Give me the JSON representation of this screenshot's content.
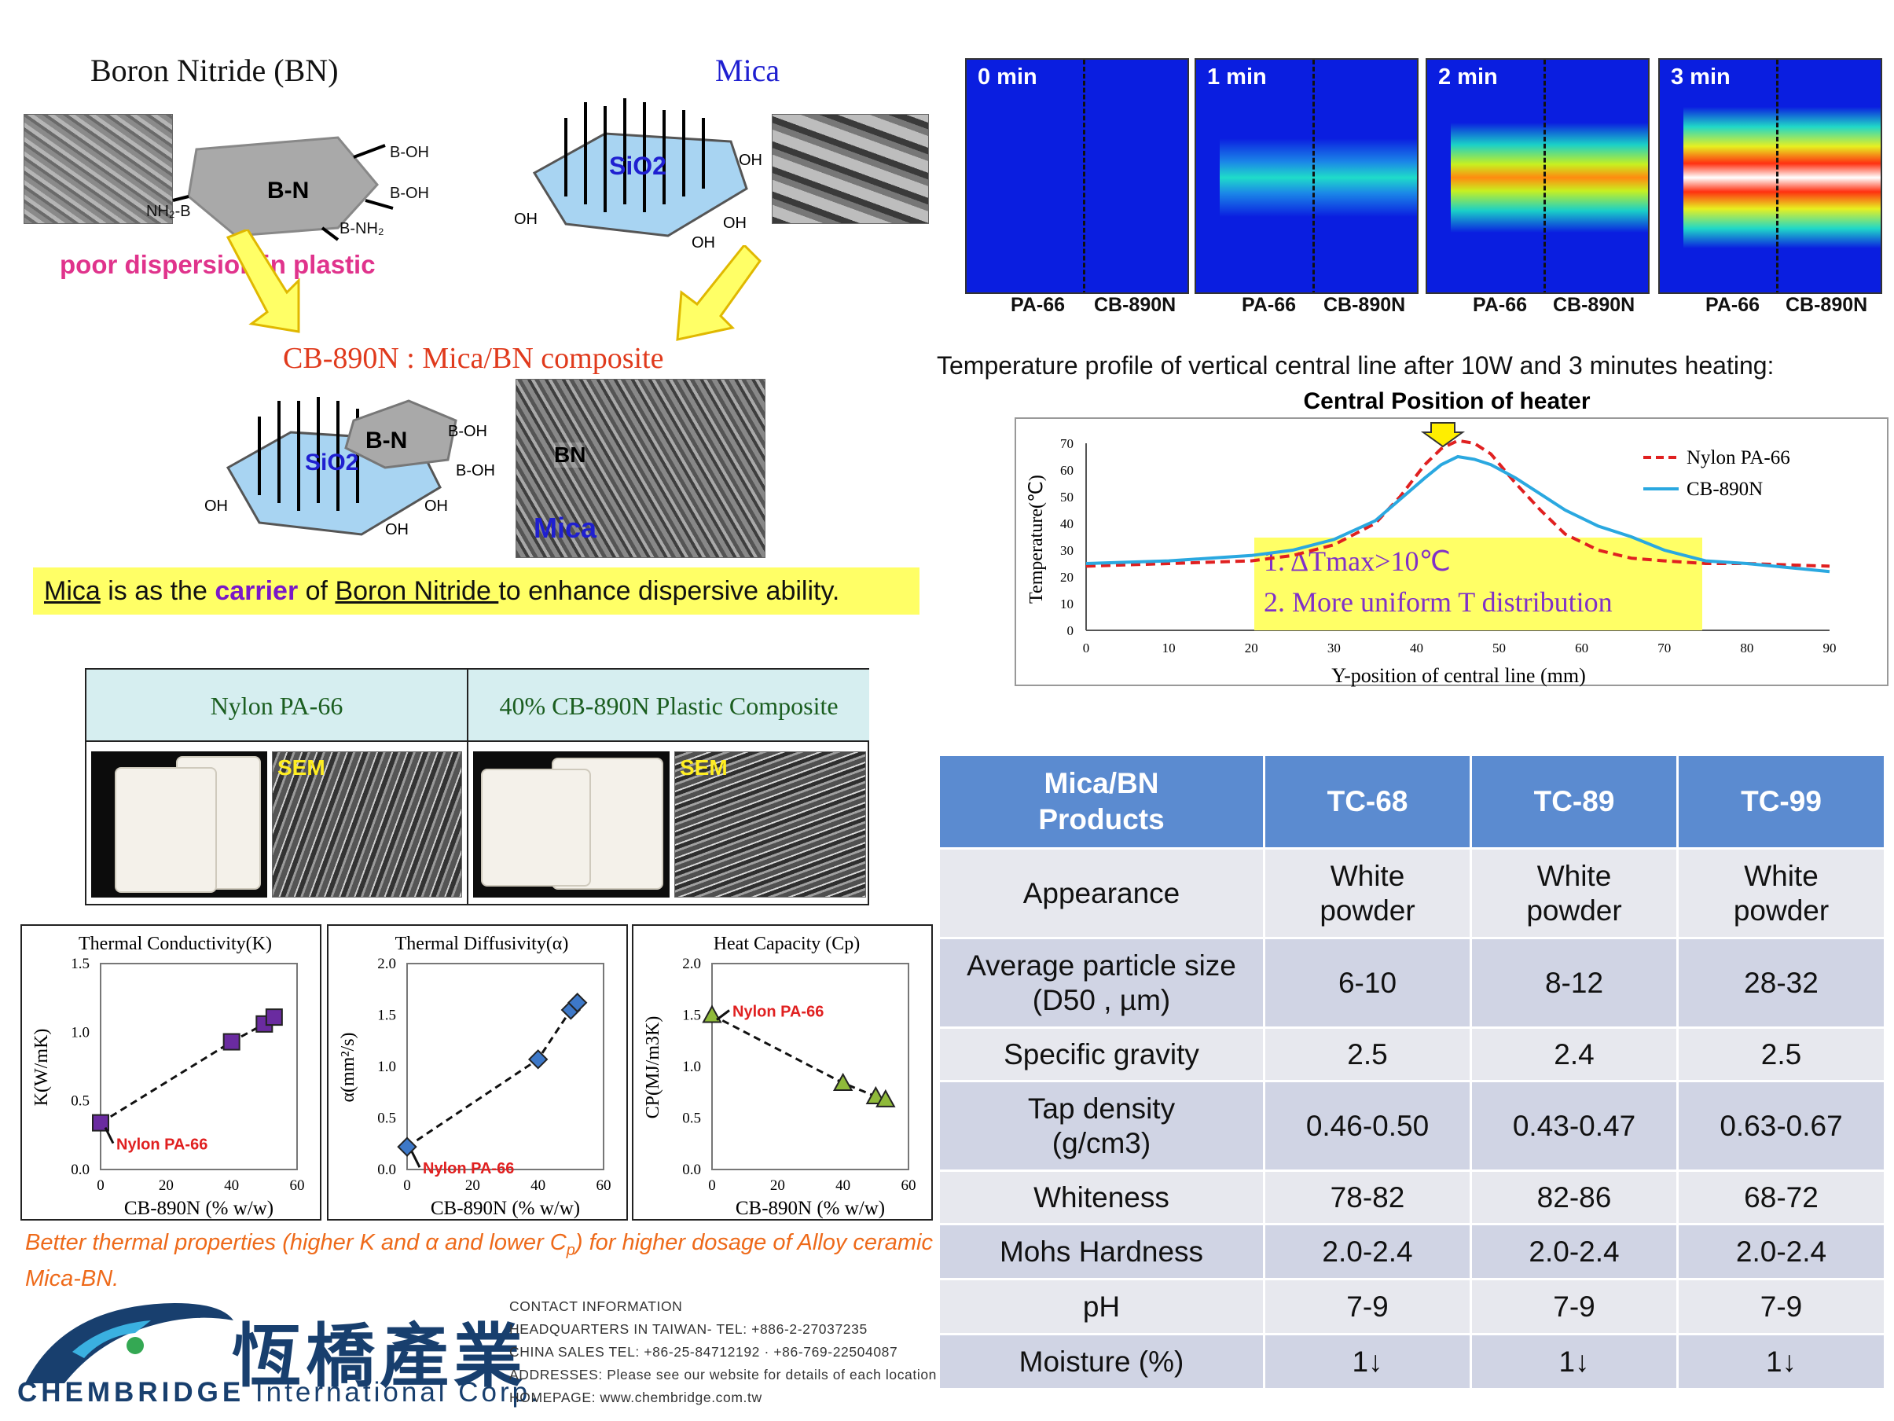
{
  "schematic": {
    "bn_title": "Boron Nitride (BN)",
    "mica_title": "Mica",
    "bn_core": "B-N",
    "sio2_core": "SiO2",
    "poor_dispersion": "poor dispersion in plastic",
    "composite_title": "CB-890N : Mica/BN composite",
    "sem_bn_label": "BN",
    "sem_mica_label": "Mica",
    "carrier_parts": [
      "Mica",
      " is as the ",
      "carrier",
      " of ",
      "Boron Nitride ",
      "to enhance dispersive ability."
    ]
  },
  "thermal_images": [
    {
      "time": "0 min",
      "left_label": "PA-66",
      "right_label": "CB-890N"
    },
    {
      "time": "1 min",
      "left_label": "PA-66",
      "right_label": "CB-890N"
    },
    {
      "time": "2 min",
      "left_label": "PA-66",
      "right_label": "CB-890N"
    },
    {
      "time": "3 min",
      "left_label": "PA-66",
      "right_label": "CB-890N"
    }
  ],
  "temp_profile_caption": "Temperature profile of vertical central line after 10W and 3 minutes heating:",
  "comparison": {
    "left_header": "Nylon PA-66",
    "right_header": "40% CB-890N Plastic Composite",
    "sem_label": "SEM"
  },
  "orange_note_parts": [
    "Better thermal properties (higher K and ",
    "α",
    " and lower C",
    "p",
    ") for higher dosage of Alloy ceramic Mica-BN."
  ],
  "brand": {
    "chinese_name": "恆橋產業",
    "english_strong": "CHEMBRIDGE",
    "english_rest": "International Corp."
  },
  "contact": [
    "CONTACT INFORMATION",
    "HEADQUARTERS IN TAIWAN- TEL: +886-2-27037235",
    "CHINA SALES TEL: +86-25-84712192 · +86-769-22504087",
    "ADDRESSES: Please see our website for details of each location",
    "HOMEPAGE: www.chembridge.com.tw"
  ],
  "spec_table": {
    "header": [
      "Mica/BN Products",
      "TC-68",
      "TC-89",
      "TC-99"
    ],
    "rows": [
      [
        "Appearance",
        "White powder",
        "White powder",
        "White powder"
      ],
      [
        "Average particle size (D50 , µm)",
        "6-10",
        "8-12",
        "28-32"
      ],
      [
        "Specific gravity",
        "2.5",
        "2.4",
        "2.5"
      ],
      [
        "Tap density (g/cm3)",
        "0.46-0.50",
        "0.43-0.47",
        "0.63-0.67"
      ],
      [
        "Whiteness",
        "78-82",
        "82-86",
        "68-72"
      ],
      [
        "Mohs Hardness",
        "2.0-2.4",
        "2.0-2.4",
        "2.0-2.4"
      ],
      [
        "pH",
        "7-9",
        "7-9",
        "7-9"
      ],
      [
        "Moisture (%)",
        "1↓",
        "1↓",
        "1↓"
      ]
    ]
  },
  "colors": {
    "accent_blue": "#5b8bd0",
    "brand_navy": "#183f6e",
    "highlight_yellow": "#ffff66",
    "nylon_red": "#e02020",
    "cb890n_blue": "#2aa8e0"
  },
  "chart_data": [
    {
      "type": "line",
      "title": "Central Position of heater",
      "xlabel": "Y-position of central line (mm)",
      "ylabel": "Temperature(℃)",
      "xlim": [
        0,
        90
      ],
      "ylim": [
        0,
        70
      ],
      "xticks": [
        0,
        10,
        20,
        30,
        40,
        50,
        60,
        70,
        80,
        90
      ],
      "yticks": [
        0,
        10,
        20,
        30,
        40,
        50,
        60,
        70
      ],
      "legend": "top-right",
      "annotations": [
        "1. ΔTmax>10℃",
        "2. More uniform T distribution"
      ],
      "series": [
        {
          "name": "Nylon PA-66",
          "style": "dashed",
          "color": "#e02020",
          "x": [
            0,
            10,
            20,
            25,
            30,
            35,
            38,
            41,
            43,
            45,
            47,
            49,
            52,
            55,
            58,
            62,
            66,
            70,
            75,
            80,
            90
          ],
          "y": [
            24,
            25,
            26,
            28,
            32,
            40,
            50,
            62,
            68,
            71,
            70,
            66,
            55,
            45,
            36,
            30,
            27,
            26,
            25,
            25,
            24
          ]
        },
        {
          "name": "CB-890N",
          "style": "solid",
          "color": "#2aa8e0",
          "x": [
            0,
            10,
            20,
            25,
            30,
            35,
            38,
            41,
            43,
            45,
            47,
            49,
            52,
            55,
            58,
            62,
            66,
            70,
            75,
            80,
            90
          ],
          "y": [
            25,
            26,
            28,
            30,
            34,
            41,
            49,
            57,
            62,
            65,
            64,
            62,
            57,
            51,
            45,
            39,
            35,
            30,
            26,
            25,
            22
          ]
        }
      ]
    },
    {
      "type": "scatter",
      "title": "Thermal Conductivity(K)",
      "xlabel": "CB-890N (% w/w)",
      "ylabel": "K(W/mK)",
      "xlim": [
        0,
        60
      ],
      "ylim": [
        0,
        1.5
      ],
      "xticks": [
        0,
        20,
        40,
        60
      ],
      "yticks": [
        "0.0",
        "0.5",
        "1.0",
        "1.5"
      ],
      "annotation": "Nylon PA-66",
      "marker_color": "#6a2ba0",
      "x": [
        0,
        40,
        50,
        53
      ],
      "y": [
        0.34,
        0.93,
        1.06,
        1.11
      ]
    },
    {
      "type": "scatter",
      "title": "Thermal Diffusivity(α)",
      "xlabel": "CB-890N (% w/w)",
      "ylabel": "α(mm²/s)",
      "xlim": [
        0,
        60
      ],
      "ylim": [
        0,
        2.0
      ],
      "xticks": [
        0,
        20,
        40,
        60
      ],
      "yticks": [
        "0.0",
        "0.5",
        "1.0",
        "1.5",
        "2.0"
      ],
      "annotation": "Nylon PA-66",
      "marker_color": "#3d78c8",
      "x": [
        0,
        40,
        50,
        52
      ],
      "y": [
        0.22,
        1.07,
        1.55,
        1.62
      ]
    },
    {
      "type": "scatter",
      "title": "Heat Capacity (Cp)",
      "xlabel": "CB-890N (% w/w)",
      "ylabel": "CP(MJ/m3K)",
      "xlim": [
        0,
        60
      ],
      "ylim": [
        0,
        2.0
      ],
      "xticks": [
        0,
        20,
        40,
        60
      ],
      "yticks": [
        "0.0",
        "0.5",
        "1.0",
        "1.5",
        "2.0"
      ],
      "annotation": "Nylon PA-66",
      "marker_color": "#8fba3a",
      "x": [
        0,
        40,
        50,
        53
      ],
      "y": [
        1.5,
        0.84,
        0.71,
        0.68
      ]
    }
  ]
}
